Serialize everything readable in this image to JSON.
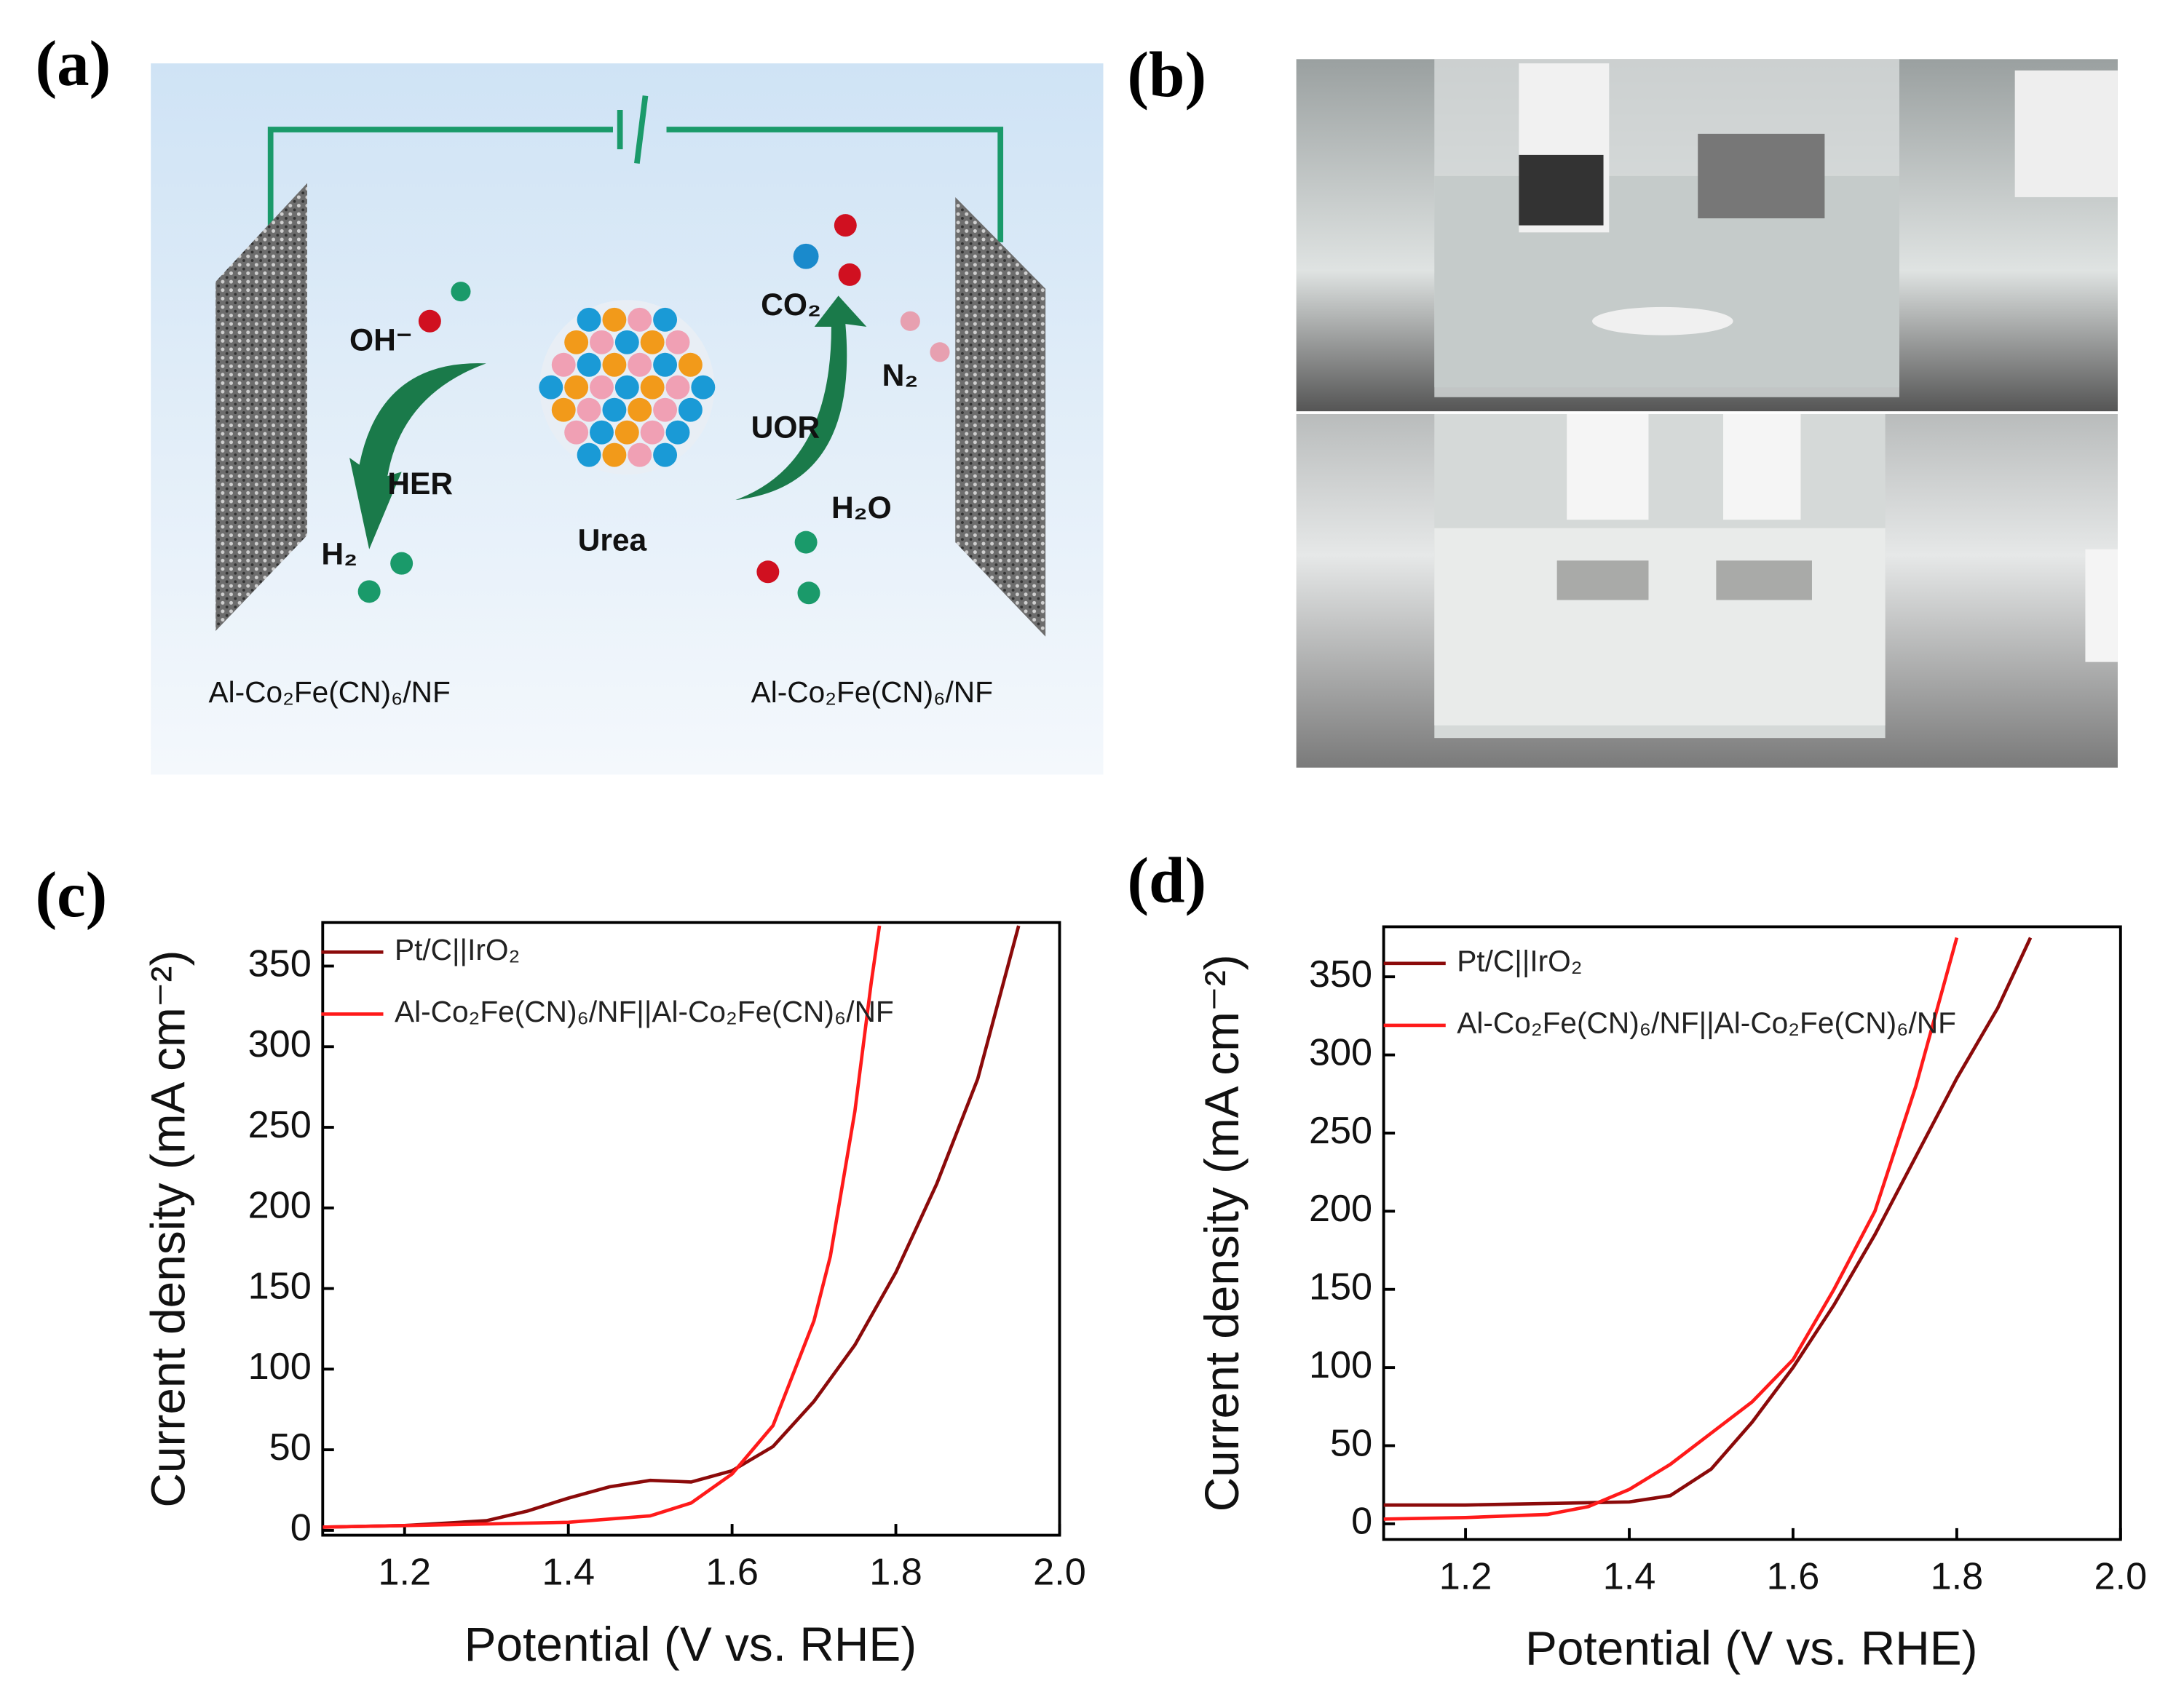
{
  "panels": [
    "(a)",
    "(b)",
    "(c)",
    "(d)"
  ],
  "diagram": {
    "labels": [
      "OH⁻",
      "HER",
      "H₂",
      "Urea",
      "CO₂",
      "UOR",
      "N₂",
      "H₂O"
    ],
    "electrodes": [
      "Al-Co₂Fe(CN)₆/NF",
      "Al-Co₂Fe(CN)₆/NF"
    ]
  },
  "chart_data": [
    {
      "type": "line",
      "xlabel": "Potential (V vs. RHE)",
      "ylabel": "Current density (mA cm⁻²)",
      "xlim": [
        1.1,
        2.0
      ],
      "xticks": [
        1.2,
        1.4,
        1.6,
        1.8,
        {
          "value": 2.0,
          "label": "2.0"
        }
      ],
      "ylim": [
        -3,
        377
      ],
      "yticks": [
        0,
        50,
        100,
        150,
        200,
        250,
        300,
        350
      ],
      "legend": "upper left",
      "series": [
        {
          "name": "Pt/C||IrO₂",
          "color": "#8b0a0a",
          "x": [
            1.1,
            1.2,
            1.3,
            1.35,
            1.4,
            1.45,
            1.5,
            1.55,
            1.6,
            1.65,
            1.7,
            1.75,
            1.8,
            1.85,
            1.9,
            1.95
          ],
          "values": [
            2,
            3,
            6,
            12,
            20,
            27,
            31,
            30,
            37,
            52,
            80,
            115,
            160,
            215,
            280,
            375
          ]
        },
        {
          "name": "Al-Co₂Fe(CN)₆/NF||Al-Co₂Fe(CN)₆/NF",
          "color": "#ff1a1a",
          "x": [
            1.1,
            1.2,
            1.3,
            1.4,
            1.5,
            1.55,
            1.6,
            1.65,
            1.7,
            1.72,
            1.75,
            1.77,
            1.78
          ],
          "values": [
            2,
            3,
            4,
            5,
            9,
            17,
            35,
            65,
            130,
            170,
            260,
            340,
            375
          ]
        }
      ]
    },
    {
      "type": "line",
      "xlabel": "Potential (V vs. RHE)",
      "ylabel": "Current density (mA cm⁻²)",
      "xlim": [
        1.1,
        2.0
      ],
      "xticks": [
        1.2,
        1.4,
        1.6,
        1.8,
        {
          "value": 2.0,
          "label": "2.0"
        }
      ],
      "ylim": [
        -10,
        382
      ],
      "yticks": [
        0,
        50,
        100,
        150,
        200,
        250,
        300,
        350
      ],
      "legend": "upper left",
      "series": [
        {
          "name": "Pt/C||IrO₂",
          "color": "#8b0a0a",
          "x": [
            1.1,
            1.2,
            1.3,
            1.4,
            1.45,
            1.5,
            1.55,
            1.6,
            1.65,
            1.7,
            1.75,
            1.8,
            1.85,
            1.89
          ],
          "values": [
            12,
            12,
            13,
            14,
            18,
            35,
            65,
            100,
            140,
            185,
            235,
            285,
            330,
            375
          ]
        },
        {
          "name": "Al-Co₂Fe(CN)₆/NF||Al-Co₂Fe(CN)₆/NF",
          "color": "#ff1a1a",
          "x": [
            1.1,
            1.2,
            1.3,
            1.35,
            1.4,
            1.45,
            1.5,
            1.55,
            1.6,
            1.65,
            1.7,
            1.75,
            1.8
          ],
          "values": [
            3,
            4,
            6,
            11,
            22,
            38,
            58,
            78,
            105,
            150,
            200,
            280,
            375
          ]
        }
      ]
    }
  ]
}
